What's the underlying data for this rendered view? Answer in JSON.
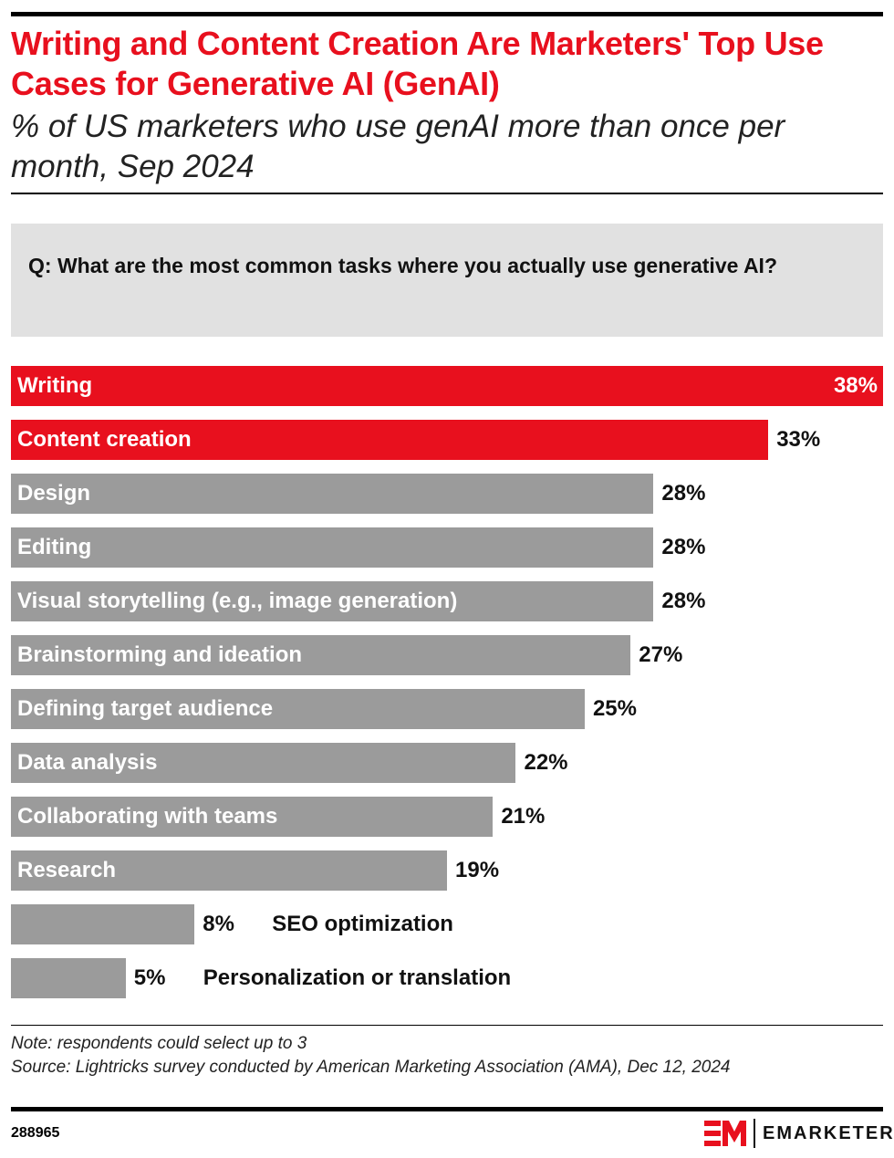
{
  "title": "Writing and Content Creation Are Marketers' Top Use Cases for Generative AI (GenAI)",
  "subtitle": "% of US marketers who use genAI more than once per month, Sep 2024",
  "question": "Q: What are the most common tasks where you actually use generative AI?",
  "chart_data": {
    "type": "bar",
    "orientation": "horizontal",
    "categories": [
      "Writing",
      "Content creation",
      "Design",
      "Editing",
      "Visual storytelling (e.g., image generation)",
      "Brainstorming and ideation",
      "Defining target audience",
      "Data analysis",
      "Collaborating with teams",
      "Research",
      "SEO optimization",
      "Personalization or translation"
    ],
    "values": [
      38,
      33,
      28,
      28,
      28,
      27,
      25,
      22,
      21,
      19,
      8,
      5
    ],
    "value_labels": [
      "38%",
      "33%",
      "28%",
      "28%",
      "28%",
      "27%",
      "25%",
      "22%",
      "21%",
      "19%",
      "8%",
      "5%"
    ],
    "unit": "%",
    "highlight_color": "#e8101e",
    "bar_color": "#9b9b9b",
    "highlighted": [
      0,
      1
    ],
    "grid": false
  },
  "note": "Note: respondents could select up to 3",
  "source": "Source: Lightricks survey conducted by American Marketing Association (AMA), Dec 12, 2024",
  "chart_id": "288965",
  "logo_text": "EMARKETER"
}
